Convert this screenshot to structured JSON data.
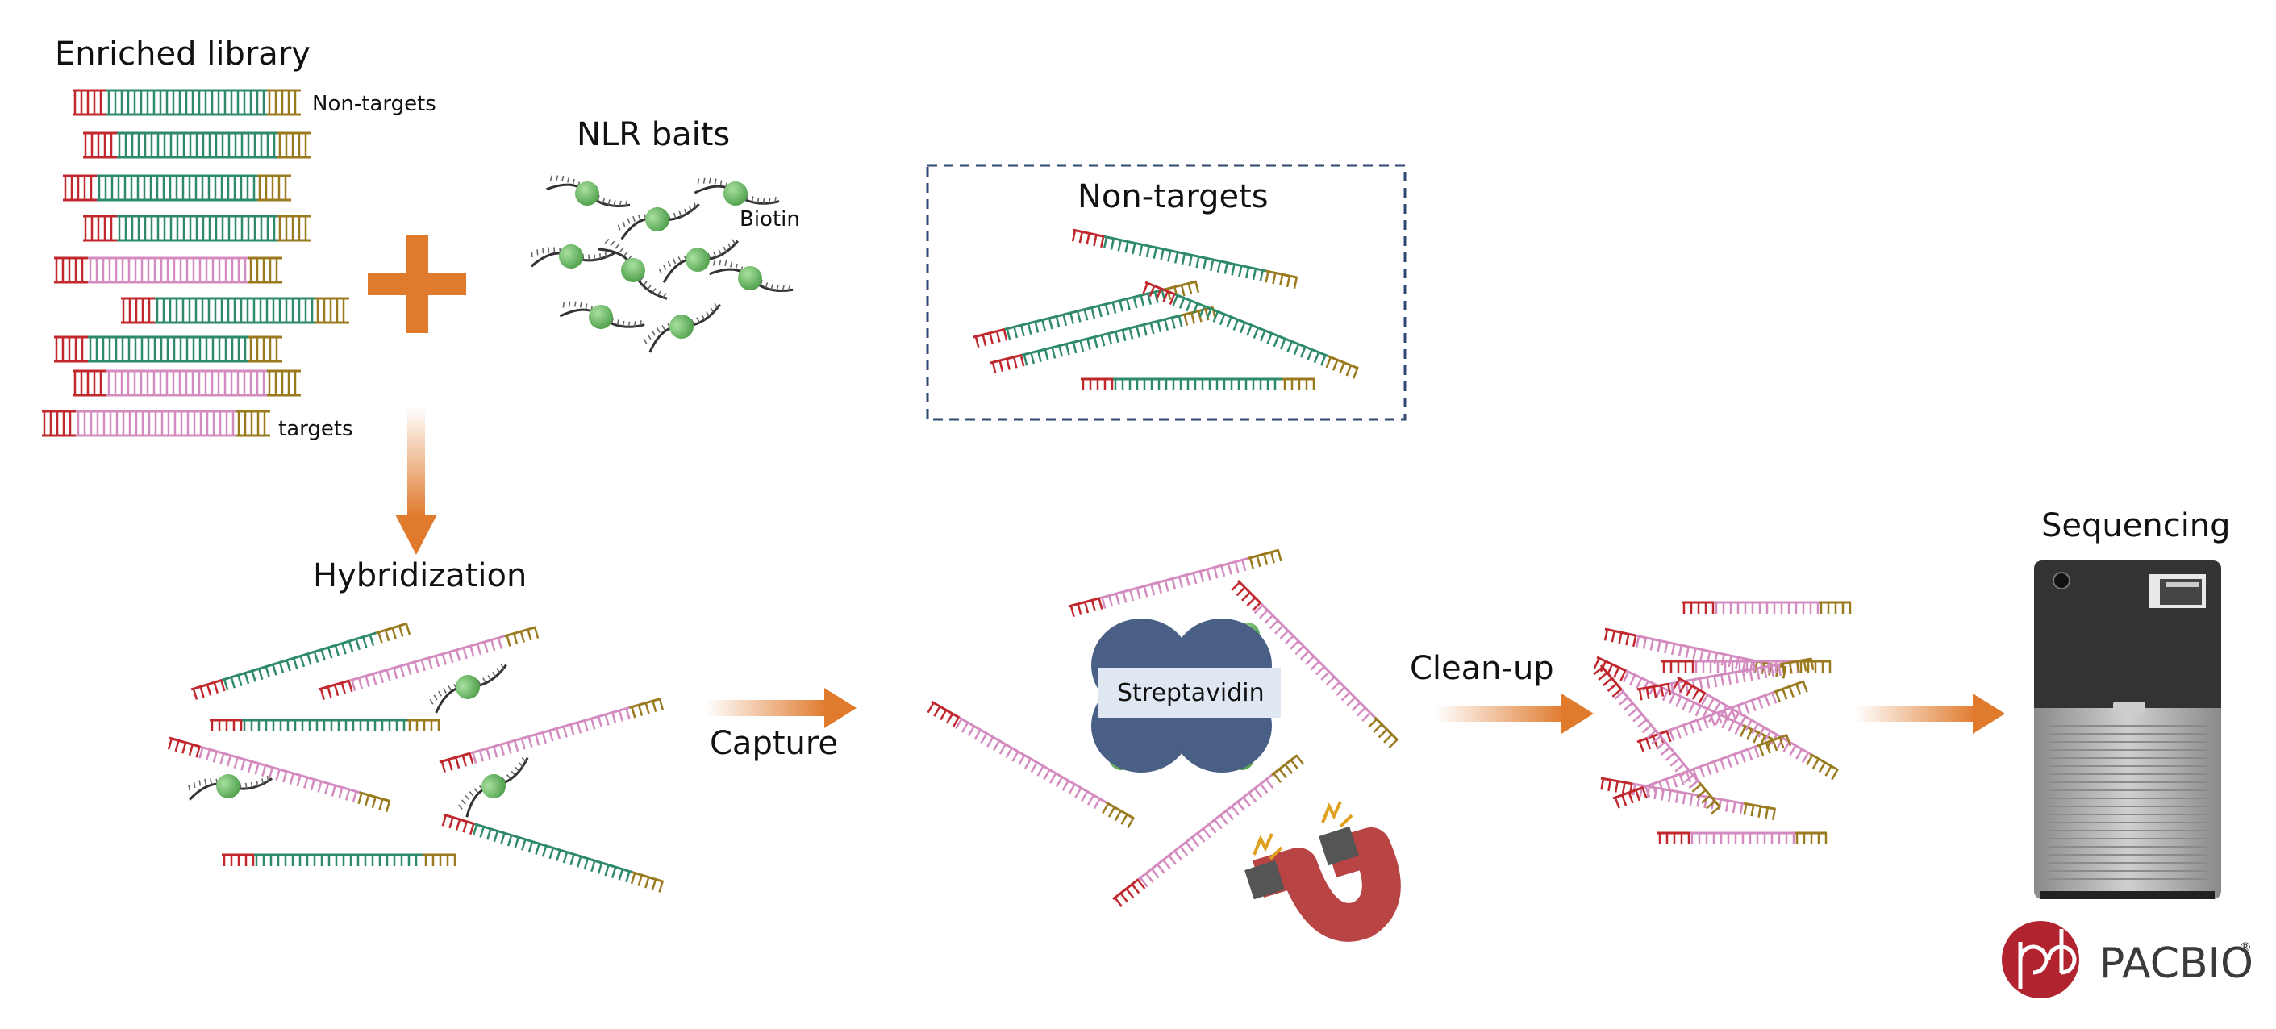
{
  "labels": {
    "enriched_library": "Enriched library",
    "non_targets_lib": "Non-targets",
    "targets_lib": "targets",
    "nlr_baits": "NLR baits",
    "biotin": "Biotin",
    "non_targets_box": "Non-targets",
    "hybridization": "Hybridization",
    "capture": "Capture",
    "streptavidin": "Streptavidin",
    "cleanup": "Clean-up",
    "sequencing": "Sequencing",
    "logo": "PACBIO",
    "logo_reg": "®"
  },
  "colors": {
    "adapter_red": "#c0282e",
    "adapter_gold": "#9a7a1f",
    "nontarget_green": "#2e8a6a",
    "target_pink": "#d48bbf",
    "bead_green": "#6cbf6a",
    "arrow_orange": "#e07b2e",
    "streptavidin_blue": "#4a5f86",
    "magnet_red": "#b84444",
    "box_dash": "#2f4a70",
    "logo_red": "#b0232f"
  }
}
